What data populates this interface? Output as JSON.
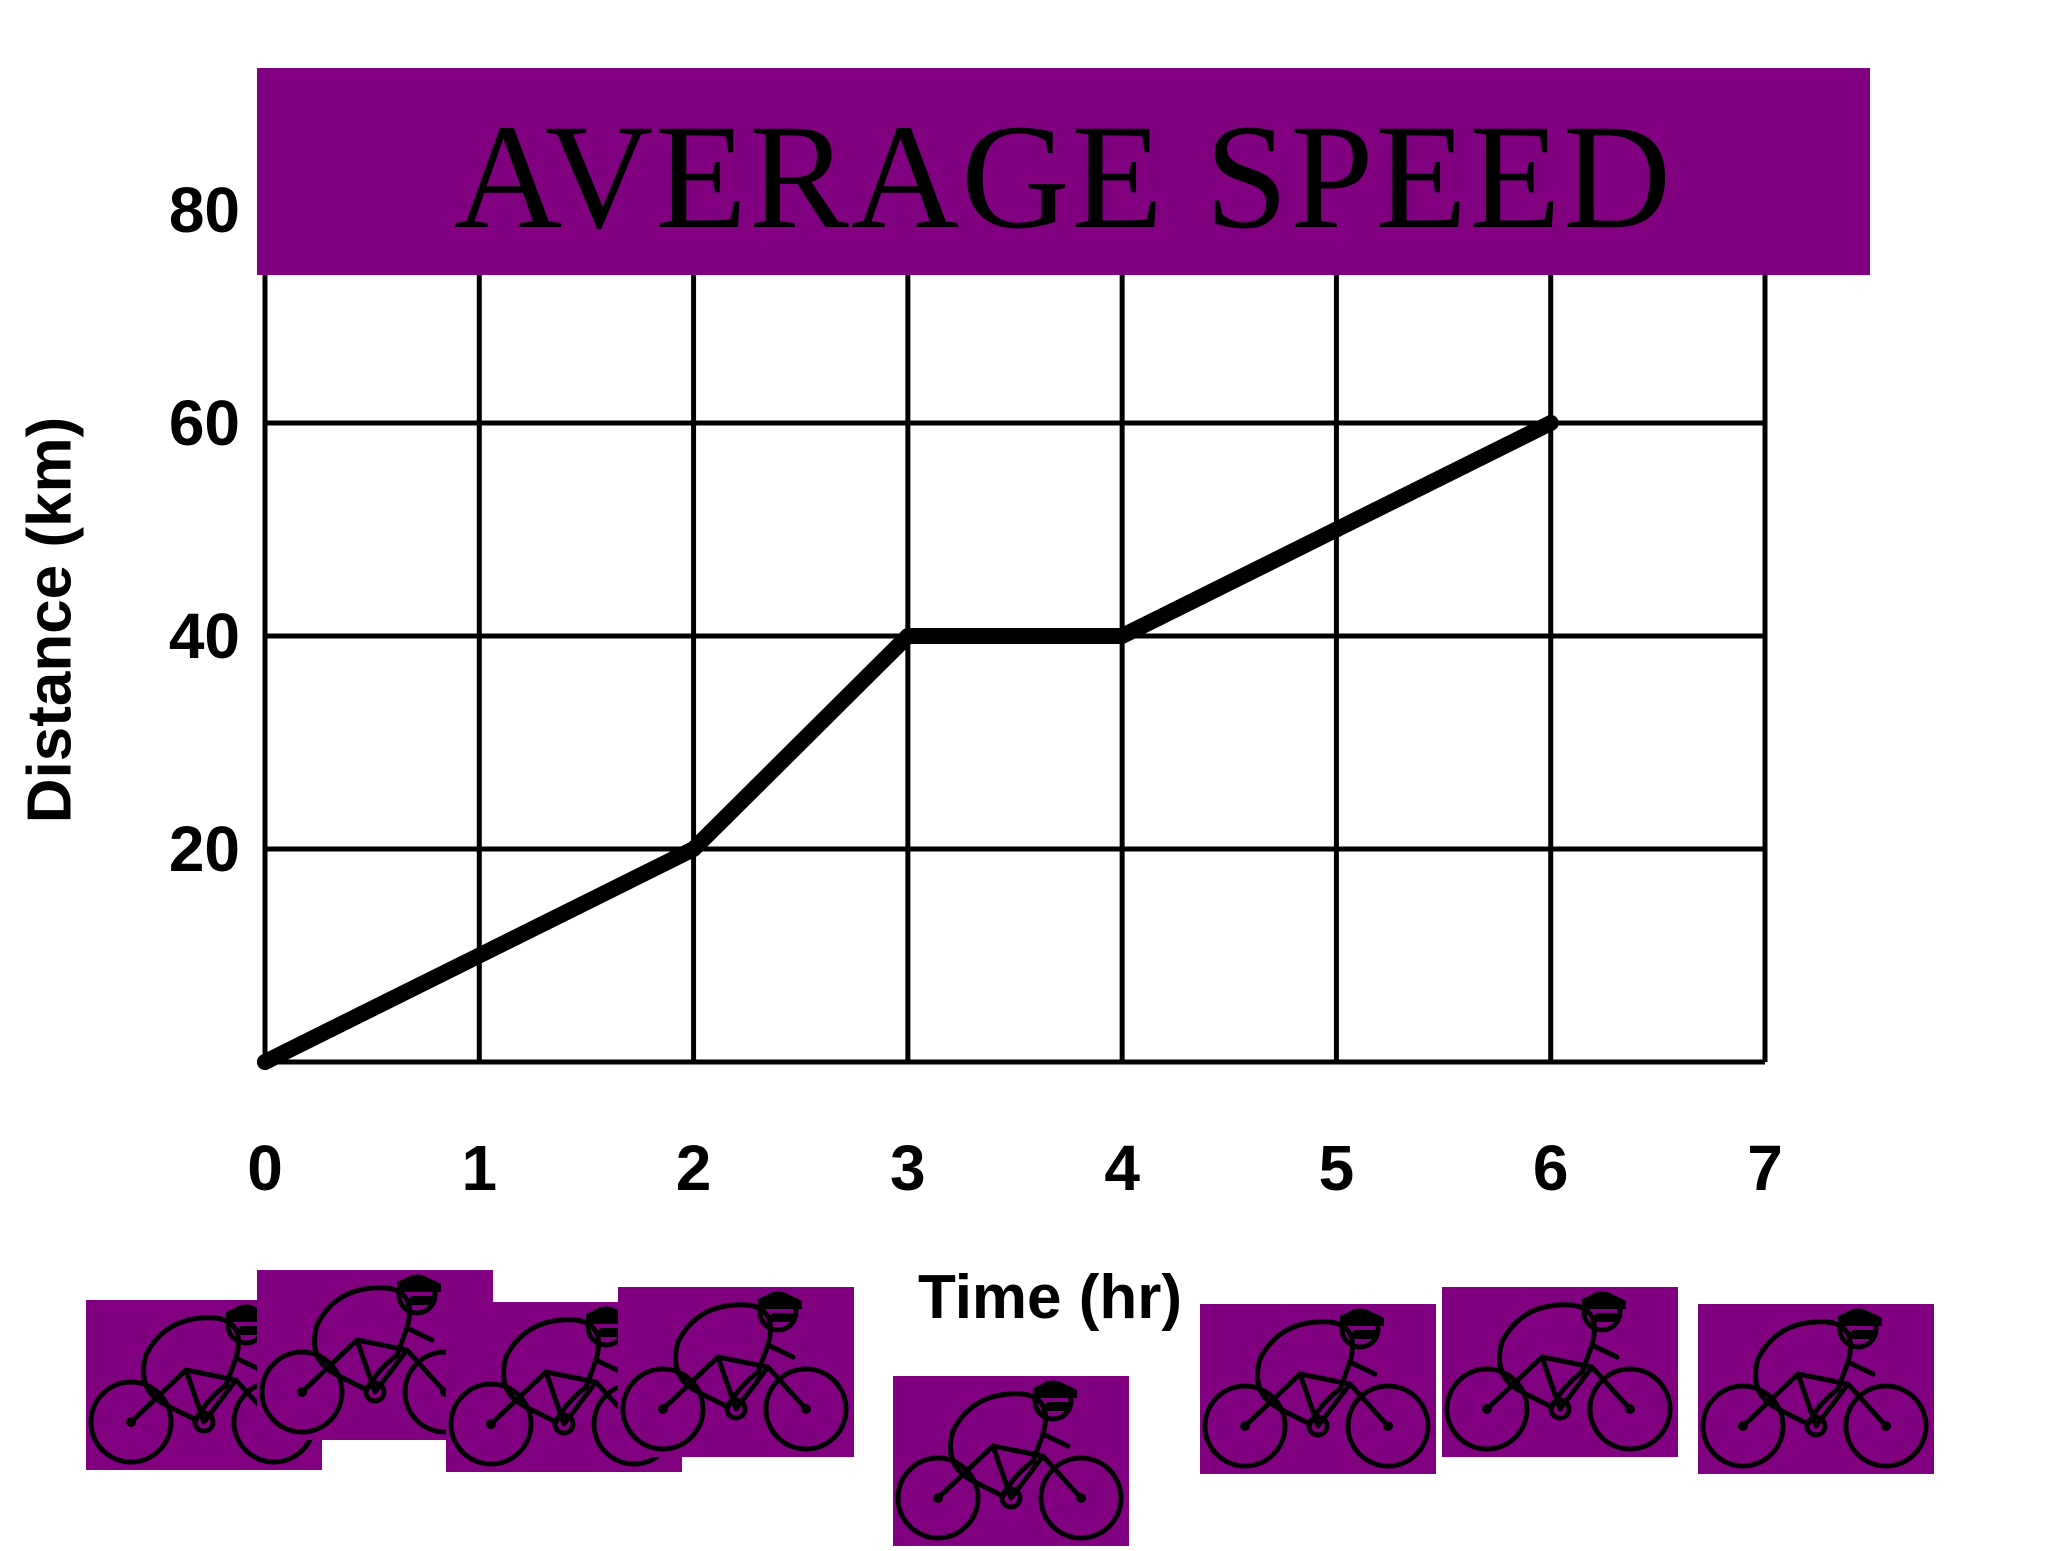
{
  "colors": {
    "banner": "#800080",
    "line": "#000000",
    "grid": "#000000",
    "cyclist_bg": "#800080"
  },
  "chart_data": {
    "type": "line",
    "title": "AVERAGE SPEED",
    "xlabel": "Time (hr)",
    "ylabel": "Distance (km)",
    "x_ticks": [
      0,
      1,
      2,
      3,
      4,
      5,
      6,
      7
    ],
    "y_ticks": [
      20,
      40,
      60,
      80
    ],
    "xlim": [
      0,
      7
    ],
    "ylim": [
      0,
      80
    ],
    "grid": true,
    "series": [
      {
        "x": [
          0,
          1,
          2,
          3,
          4,
          5,
          6
        ],
        "y": [
          0,
          10,
          20,
          40,
          40,
          50,
          60
        ]
      }
    ]
  },
  "decorations": {
    "cyclist_icon": "cyclist-icon",
    "cyclist_count": 8
  }
}
